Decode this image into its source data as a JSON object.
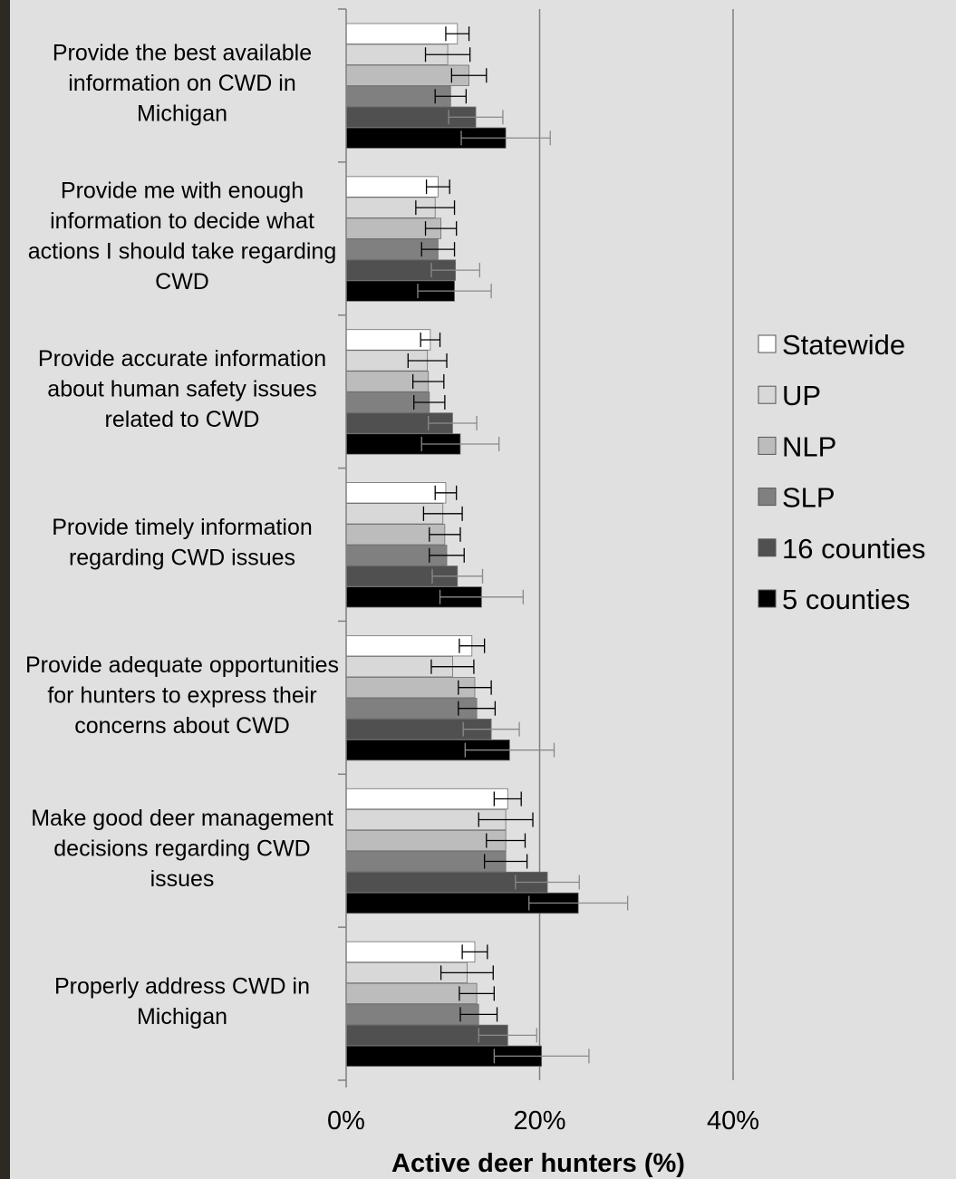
{
  "chart_data": {
    "type": "bar",
    "orientation": "horizontal",
    "categories": [
      "Provide the best available information on CWD in Michigan",
      "Provide me with enough information to decide what actions I should take regarding CWD",
      "Provide accurate information about human safety issues related to CWD",
      "Provide timely information regarding CWD issues",
      "Provide adequate opportunities for hunters to express their concerns about CWD",
      "Make good deer management decisions regarding CWD issues",
      "Properly address CWD in Michigan"
    ],
    "category_lines": [
      [
        "Provide the best available",
        "information on CWD in",
        "Michigan"
      ],
      [
        "Provide me with enough",
        "information to decide what",
        "actions I should take regarding",
        "CWD"
      ],
      [
        "Provide accurate information",
        "about human safety issues",
        "related to CWD"
      ],
      [
        "Provide timely information",
        "regarding CWD issues"
      ],
      [
        "Provide adequate opportunities",
        "for hunters to express their",
        "concerns about CWD"
      ],
      [
        "Make good deer management",
        "decisions regarding CWD",
        "issues"
      ],
      [
        "Properly address CWD in",
        "Michigan"
      ]
    ],
    "series": [
      {
        "name": "Statewide",
        "color": "#ffffff",
        "values": [
          11.5,
          9.5,
          8.7,
          10.3,
          13.0,
          16.7,
          13.3
        ],
        "errors": [
          1.2,
          1.2,
          1.0,
          1.1,
          1.3,
          1.4,
          1.3
        ]
      },
      {
        "name": "UP",
        "color": "#d8d8d8",
        "values": [
          10.5,
          9.2,
          8.4,
          10.0,
          11.0,
          16.5,
          12.5
        ],
        "errors": [
          2.3,
          2.0,
          2.0,
          2.0,
          2.2,
          2.8,
          2.7
        ]
      },
      {
        "name": "NLP",
        "color": "#bcbcbc",
        "values": [
          12.7,
          9.8,
          8.5,
          10.2,
          13.3,
          16.5,
          13.5
        ],
        "errors": [
          1.8,
          1.6,
          1.6,
          1.6,
          1.7,
          2.0,
          1.8
        ]
      },
      {
        "name": "SLP",
        "color": "#808080",
        "values": [
          10.8,
          9.5,
          8.6,
          10.4,
          13.5,
          16.5,
          13.7
        ],
        "errors": [
          1.6,
          1.7,
          1.6,
          1.8,
          1.9,
          2.2,
          1.9
        ]
      },
      {
        "name": "16 counties",
        "color": "#505050",
        "values": [
          13.4,
          11.3,
          11.0,
          11.5,
          15.0,
          20.8,
          16.7
        ],
        "errors": [
          2.8,
          2.5,
          2.5,
          2.6,
          2.9,
          3.3,
          3.0
        ]
      },
      {
        "name": "5 counties",
        "color": "#000000",
        "values": [
          16.5,
          11.2,
          11.8,
          14.0,
          16.9,
          24.0,
          20.2
        ],
        "errors": [
          4.6,
          3.8,
          4.0,
          4.3,
          4.6,
          5.1,
          4.9
        ]
      }
    ],
    "xlabel": "Active deer hunters (%)",
    "xlim": [
      0,
      40
    ],
    "xticks": [
      0,
      20,
      40
    ],
    "xtick_labels": [
      "0%",
      "20%",
      "40%"
    ],
    "gridlines": "vertical, at major ticks",
    "legend": "right"
  }
}
